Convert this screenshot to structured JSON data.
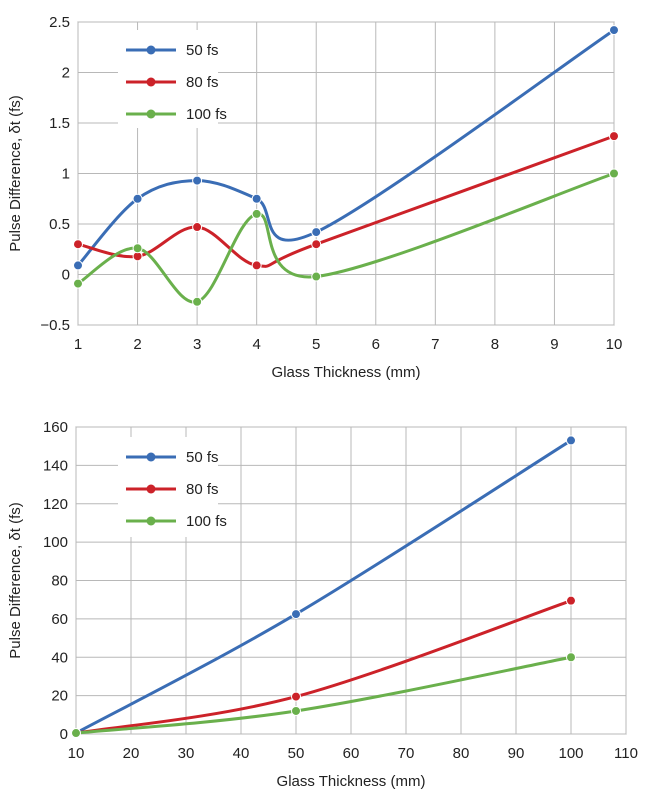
{
  "chart_data": [
    {
      "type": "line",
      "smooth": true,
      "xlabel": "Glass Thickness (mm)",
      "ylabel": "Pulse Difference, δt (fs)",
      "xlim": [
        1,
        10
      ],
      "ylim": [
        -0.5,
        2.5
      ],
      "xticks": [
        "1",
        "2",
        "3",
        "4",
        "5",
        "6",
        "7",
        "8",
        "9",
        "10"
      ],
      "yticks": [
        "−0.5",
        "0",
        "0.5",
        "1",
        "1.5",
        "2",
        "2.5"
      ],
      "grid": true,
      "legend_position": "top-left",
      "series": [
        {
          "name": "50 fs",
          "color": "#3a6db5",
          "x": [
            1,
            2,
            3,
            4,
            5,
            10
          ],
          "y": [
            0.09,
            0.75,
            0.93,
            0.75,
            0.42,
            2.42
          ]
        },
        {
          "name": "80 fs",
          "color": "#cc2229",
          "x": [
            1,
            2,
            3,
            4,
            5,
            10
          ],
          "y": [
            0.3,
            0.18,
            0.47,
            0.09,
            0.3,
            1.37
          ]
        },
        {
          "name": "100 fs",
          "color": "#6ab04c",
          "x": [
            1,
            2,
            3,
            4,
            5,
            10
          ],
          "y": [
            -0.09,
            0.26,
            -0.27,
            0.6,
            -0.02,
            1.0
          ]
        }
      ]
    },
    {
      "type": "line",
      "smooth": true,
      "xlabel": "Glass Thickness (mm)",
      "ylabel": "Pulse Difference, δt (fs)",
      "xlim": [
        10,
        110
      ],
      "ylim": [
        0,
        160
      ],
      "xticks": [
        "10",
        "20",
        "30",
        "40",
        "50",
        "60",
        "70",
        "80",
        "90",
        "100",
        "110"
      ],
      "yticks": [
        "0",
        "20",
        "40",
        "60",
        "80",
        "100",
        "120",
        "140",
        "160"
      ],
      "grid": true,
      "legend_position": "top-left",
      "series": [
        {
          "name": "50 fs",
          "color": "#3a6db5",
          "x": [
            10,
            50,
            100
          ],
          "y": [
            0.5,
            62.5,
            153
          ]
        },
        {
          "name": "80 fs",
          "color": "#cc2229",
          "x": [
            10,
            50,
            100
          ],
          "y": [
            0.5,
            19.5,
            69.5
          ]
        },
        {
          "name": "100 fs",
          "color": "#6ab04c",
          "x": [
            10,
            50,
            100
          ],
          "y": [
            0.5,
            12,
            40
          ]
        }
      ]
    }
  ]
}
